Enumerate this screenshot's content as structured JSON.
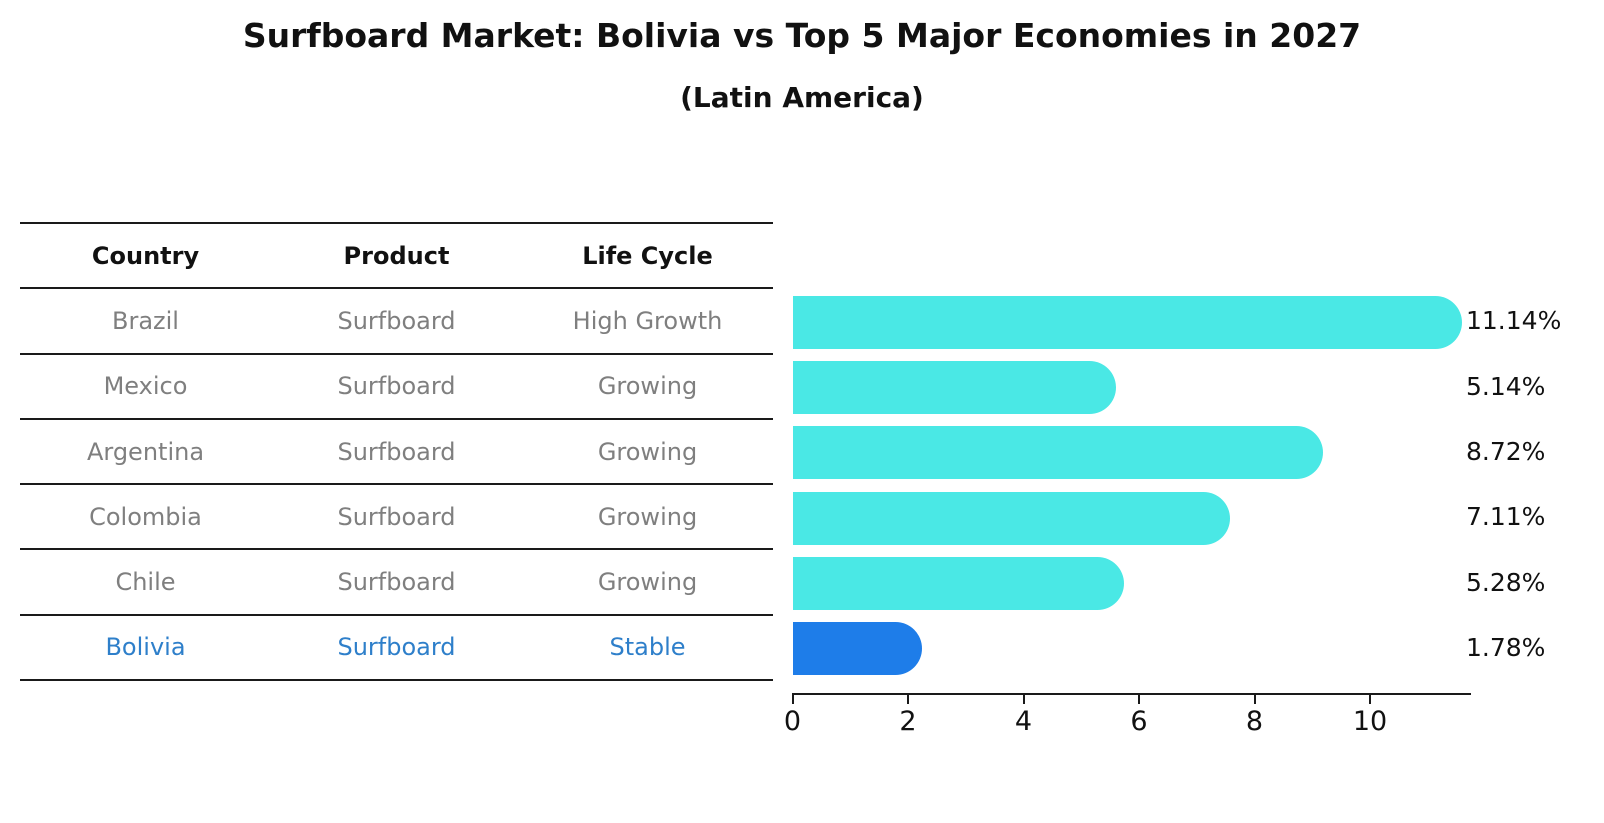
{
  "title": "Surfboard Market: Bolivia vs Top 5 Major Economies in 2027",
  "subtitle": "(Latin America)",
  "table": {
    "headers": [
      "Country",
      "Product",
      "Life Cycle"
    ],
    "rows": [
      {
        "country": "Brazil",
        "product": "Surfboard",
        "life_cycle": "High Growth",
        "highlight": false
      },
      {
        "country": "Mexico",
        "product": "Surfboard",
        "life_cycle": "Growing",
        "highlight": false
      },
      {
        "country": "Argentina",
        "product": "Surfboard",
        "life_cycle": "Growing",
        "highlight": false
      },
      {
        "country": "Colombia",
        "product": "Surfboard",
        "life_cycle": "Growing",
        "highlight": false
      },
      {
        "country": "Chile",
        "product": "Surfboard",
        "life_cycle": "Growing",
        "highlight": false
      },
      {
        "country": "Bolivia",
        "product": "Surfboard",
        "life_cycle": "Stable",
        "highlight": true
      }
    ]
  },
  "chart_data": {
    "type": "bar",
    "orientation": "horizontal",
    "title": "Surfboard Market: Bolivia vs Top 5 Major Economies in 2027",
    "subtitle": "(Latin America)",
    "categories": [
      "Brazil",
      "Mexico",
      "Argentina",
      "Colombia",
      "Chile",
      "Bolivia"
    ],
    "values": [
      11.14,
      5.14,
      8.72,
      7.11,
      5.28,
      1.78
    ],
    "value_labels": [
      "11.14%",
      "5.14%",
      "8.72%",
      "7.11%",
      "5.28%",
      "1.78%"
    ],
    "xlabel": "",
    "ylabel": "",
    "xticks": [
      0,
      2,
      4,
      6,
      8,
      10
    ],
    "xlim": [
      0,
      11.75
    ],
    "grid": false,
    "legend": "none",
    "highlight_index": 5
  },
  "colors": {
    "bar_default": "#4ae8e5",
    "bar_highlight": "#1e7de9",
    "highlight_text": "#2e7fca",
    "table_text": "#7f7f7f",
    "header_text": "#111111",
    "axis": "#1a1a1a"
  }
}
